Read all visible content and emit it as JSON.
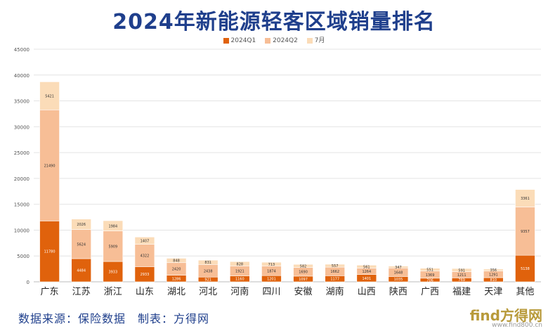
{
  "title": "2024年新能源轻客区域销量排名",
  "source": "数据来源：保险数据　制表：方得网",
  "logo": {
    "text": "find方得网",
    "sub": "www.find800.cn"
  },
  "chart_data": {
    "type": "bar",
    "stacked": true,
    "title": "2024年新能源轻客区域销量排名",
    "ylim": [
      0,
      45000
    ],
    "yticks": [
      0,
      5000,
      10000,
      15000,
      20000,
      25000,
      30000,
      35000,
      40000,
      45000
    ],
    "grid": true,
    "legend_position": "top",
    "categories": [
      "广东",
      "江苏",
      "浙江",
      "山东",
      "湖北",
      "河北",
      "河南",
      "四川",
      "安徽",
      "湖南",
      "山西",
      "陕西",
      "广西",
      "福建",
      "天津",
      "其他"
    ],
    "series": [
      {
        "name": "2024Q1",
        "color": "#e0620c",
        "values": [
          11780,
          4484,
          3933,
          2933,
          1286,
          921,
          1160,
          1201,
          1097,
          1177,
          1401,
          1035,
          706,
          769,
          810,
          5138
        ]
      },
      {
        "name": "2024Q2",
        "color": "#f7be96",
        "values": [
          21490,
          5624,
          5909,
          4322,
          2420,
          2438,
          1921,
          1874,
          1690,
          1662,
          1264,
          1648,
          1369,
          1211,
          1291,
          9357
        ]
      },
      {
        "name": "7月",
        "color": "#fbdcb8",
        "values": [
          5421,
          2026,
          1984,
          1407,
          848,
          831,
          828,
          713,
          582,
          557,
          561,
          347,
          551,
          591,
          356,
          3361
        ]
      }
    ]
  }
}
